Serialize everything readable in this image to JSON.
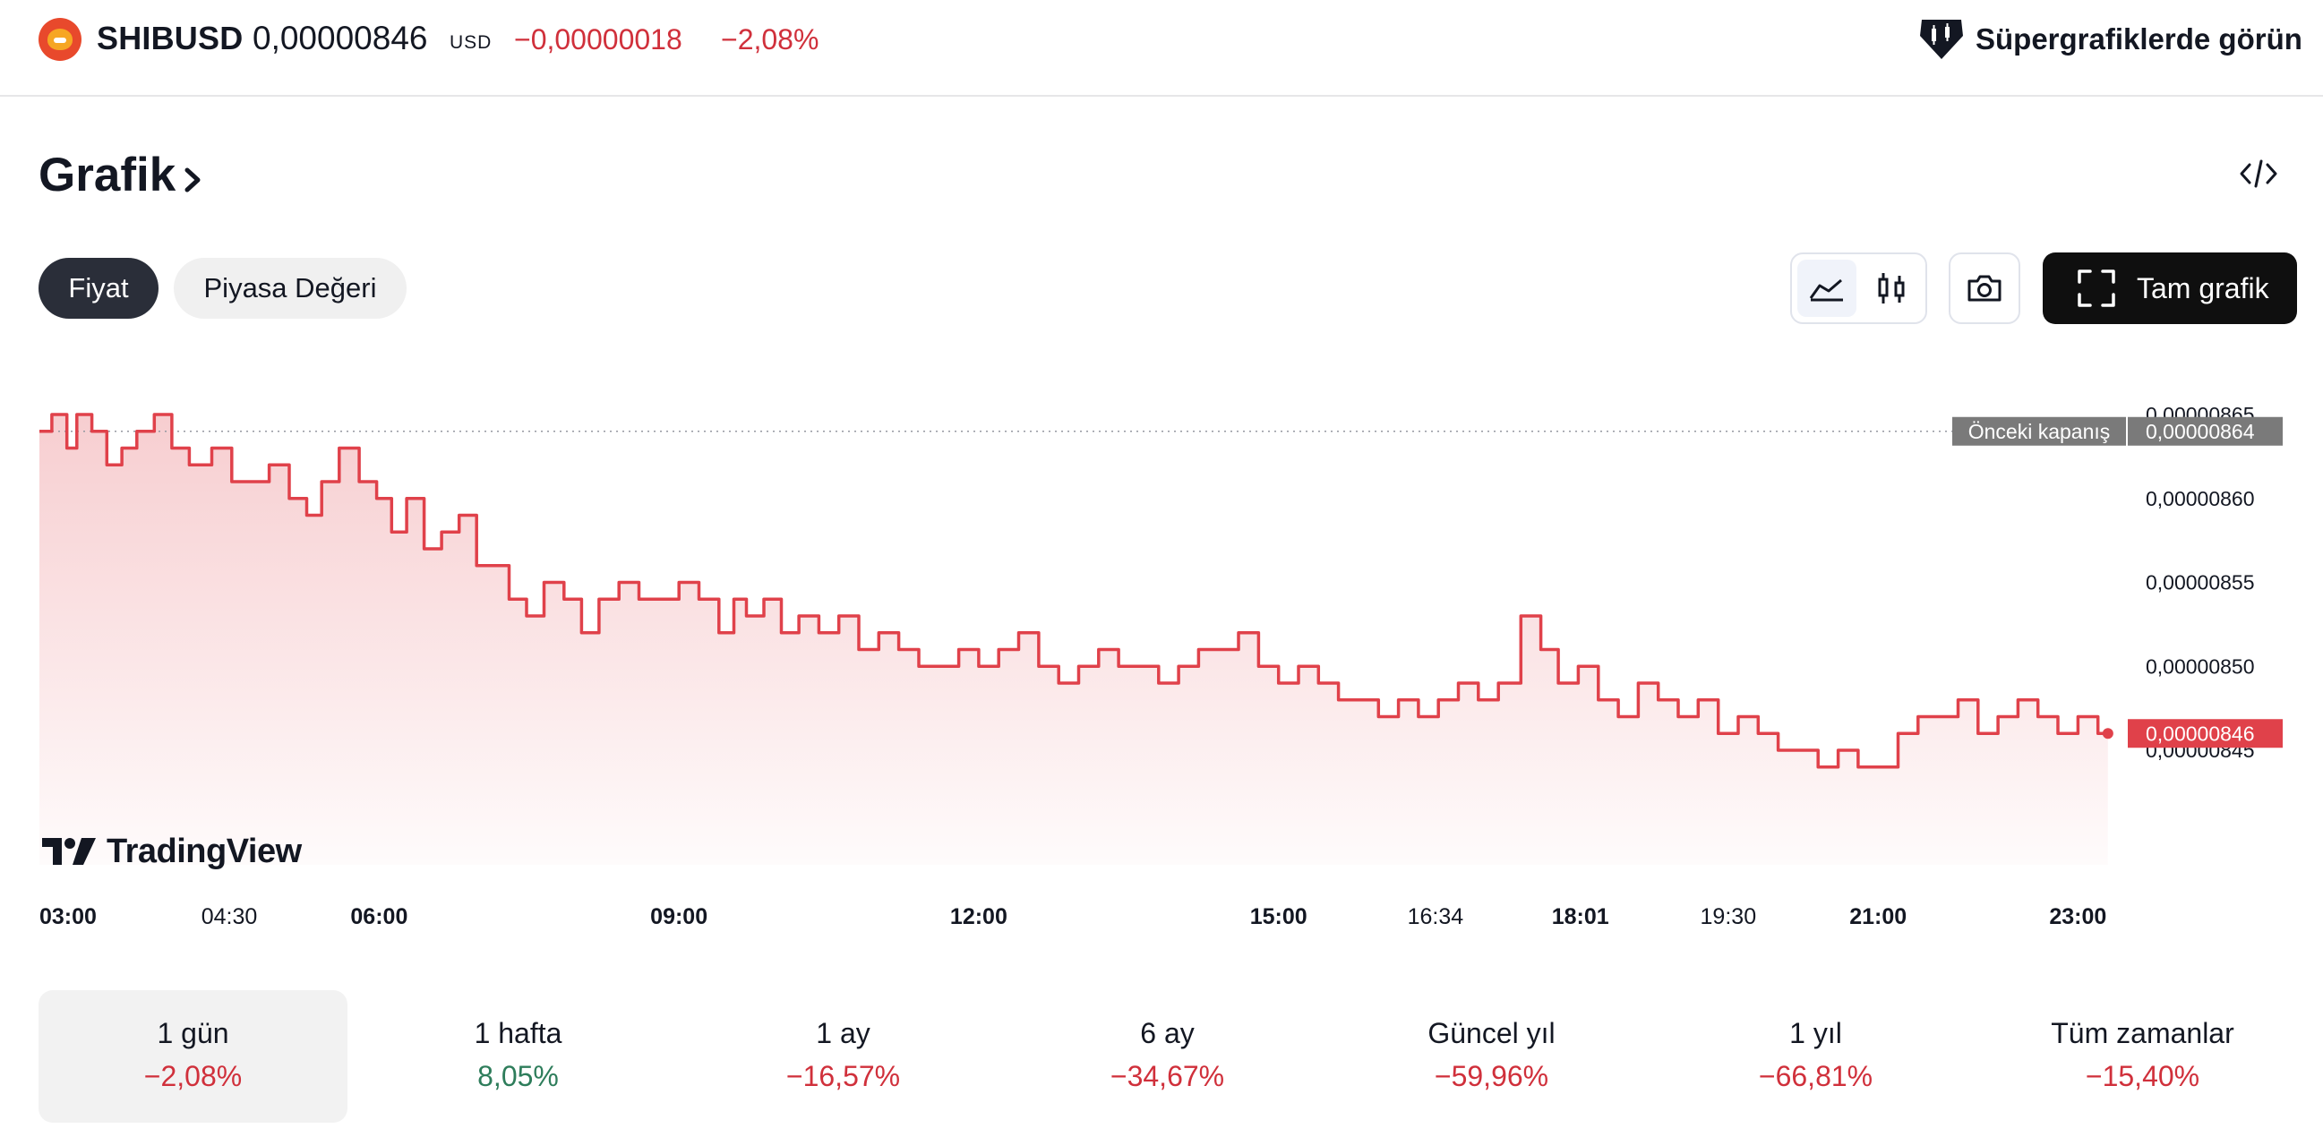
{
  "header": {
    "symbol": "SHIBUSD",
    "price": "0,00000846",
    "currency": "USD",
    "change_abs": "−0,00000018",
    "change_pct": "−2,08%",
    "supercharts_label": "Süpergrafiklerde görün"
  },
  "section": {
    "title": "Grafik"
  },
  "tabs": [
    {
      "label": "Fiyat",
      "active": true
    },
    {
      "label": "Piyasa Değeri",
      "active": false
    }
  ],
  "toolbar": {
    "full_chart_label": "Tam grafik"
  },
  "colors": {
    "line": "#e0414a",
    "negative": "#d0303b",
    "positive": "#2e7d5b",
    "prev_close_badge": "#7a7a7a",
    "last_price_badge": "#e0414a"
  },
  "chart_data": {
    "type": "area",
    "x_ticks": [
      {
        "label": "03:00",
        "hour": 3.0,
        "bold": true
      },
      {
        "label": "04:30",
        "hour": 4.5,
        "bold": false
      },
      {
        "label": "06:00",
        "hour": 6.0,
        "bold": true
      },
      {
        "label": "09:00",
        "hour": 9.0,
        "bold": true
      },
      {
        "label": "12:00",
        "hour": 12.0,
        "bold": true
      },
      {
        "label": "15:00",
        "hour": 15.0,
        "bold": true
      },
      {
        "label": "16:34",
        "hour": 16.57,
        "bold": false
      },
      {
        "label": "18:01",
        "hour": 18.02,
        "bold": true
      },
      {
        "label": "19:30",
        "hour": 19.5,
        "bold": false
      },
      {
        "label": "21:00",
        "hour": 21.0,
        "bold": true
      },
      {
        "label": "23:00",
        "hour": 23.0,
        "bold": true
      }
    ],
    "y_ticks": [
      {
        "label": "0,00000865",
        "value": 8.65
      },
      {
        "label": "0,00000860",
        "value": 8.6
      },
      {
        "label": "0,00000855",
        "value": 8.55
      },
      {
        "label": "0,00000850",
        "value": 8.5
      },
      {
        "label": "0,00000845",
        "value": 8.45
      }
    ],
    "value_unit_multiplier": "1e-6",
    "ylim": [
      8.43,
      8.66
    ],
    "previous_close": {
      "label": "Önceki kapanış",
      "value_label": "0,00000864",
      "value": 8.64
    },
    "last_price": {
      "value_label": "0,00000846",
      "value": 8.46
    },
    "series": [
      {
        "x_hours": [
          2.6,
          2.85,
          2.9,
          3.05,
          3.2,
          3.35,
          3.5,
          3.65,
          3.85,
          4.0,
          4.2,
          4.45,
          4.6,
          4.8,
          5.0,
          5.2,
          5.35,
          5.5,
          5.7,
          5.9,
          6.05,
          6.2,
          6.35,
          6.55,
          6.7,
          6.9,
          7.05,
          7.2,
          7.4,
          7.55,
          7.75,
          7.95,
          8.1,
          8.3,
          8.5,
          8.7,
          8.9,
          9.1,
          9.3,
          9.5,
          9.6,
          9.75,
          9.95,
          10.1,
          10.3,
          10.5,
          10.7,
          10.9,
          11.1,
          11.3,
          11.5,
          11.7,
          11.9,
          12.1,
          12.3,
          12.5,
          12.7,
          12.9,
          13.1,
          13.3,
          13.5,
          13.7,
          13.9,
          14.1,
          14.3,
          14.5,
          14.7,
          14.9,
          15.1,
          15.3,
          15.5,
          15.7,
          15.9,
          16.1,
          16.3,
          16.5,
          16.7,
          16.9,
          17.1,
          17.3,
          17.55,
          17.7,
          17.9,
          18.1,
          18.3,
          18.5,
          18.7,
          18.9,
          19.1,
          19.3,
          19.5,
          19.7,
          19.9,
          20.1,
          20.3,
          20.5,
          20.7,
          20.9,
          21.1,
          21.3,
          21.5,
          21.7,
          21.9,
          22.1,
          22.3,
          22.5,
          22.7,
          22.9,
          23.1,
          23.3
        ],
        "values": [
          8.64,
          8.65,
          8.63,
          8.65,
          8.64,
          8.62,
          8.63,
          8.64,
          8.65,
          8.63,
          8.62,
          8.63,
          8.61,
          8.61,
          8.62,
          8.6,
          8.59,
          8.61,
          8.63,
          8.61,
          8.6,
          8.58,
          8.6,
          8.57,
          8.58,
          8.59,
          8.56,
          8.56,
          8.54,
          8.53,
          8.55,
          8.54,
          8.52,
          8.54,
          8.55,
          8.54,
          8.54,
          8.55,
          8.54,
          8.52,
          8.54,
          8.53,
          8.54,
          8.52,
          8.53,
          8.52,
          8.53,
          8.51,
          8.52,
          8.51,
          8.5,
          8.5,
          8.51,
          8.5,
          8.51,
          8.52,
          8.5,
          8.49,
          8.5,
          8.51,
          8.5,
          8.5,
          8.49,
          8.5,
          8.51,
          8.51,
          8.52,
          8.5,
          8.49,
          8.5,
          8.49,
          8.48,
          8.48,
          8.47,
          8.48,
          8.47,
          8.48,
          8.49,
          8.48,
          8.49,
          8.53,
          8.51,
          8.49,
          8.5,
          8.48,
          8.47,
          8.49,
          8.48,
          8.47,
          8.48,
          8.46,
          8.47,
          8.46,
          8.45,
          8.45,
          8.44,
          8.45,
          8.44,
          8.44,
          8.46,
          8.47,
          8.47,
          8.48,
          8.46,
          8.47,
          8.48,
          8.47,
          8.46,
          8.47,
          8.46
        ]
      }
    ]
  },
  "branding": {
    "tradingview": "TradingView"
  },
  "periods": [
    {
      "label": "1 gün",
      "value": "−2,08%",
      "trend": "neg",
      "active": true
    },
    {
      "label": "1 hafta",
      "value": "8,05%",
      "trend": "pos",
      "active": false
    },
    {
      "label": "1 ay",
      "value": "−16,57%",
      "trend": "neg",
      "active": false
    },
    {
      "label": "6 ay",
      "value": "−34,67%",
      "trend": "neg",
      "active": false
    },
    {
      "label": "Güncel yıl",
      "value": "−59,96%",
      "trend": "neg",
      "active": false
    },
    {
      "label": "1 yıl",
      "value": "−66,81%",
      "trend": "neg",
      "active": false
    },
    {
      "label": "Tüm zamanlar",
      "value": "−15,40%",
      "trend": "neg",
      "active": false
    }
  ]
}
